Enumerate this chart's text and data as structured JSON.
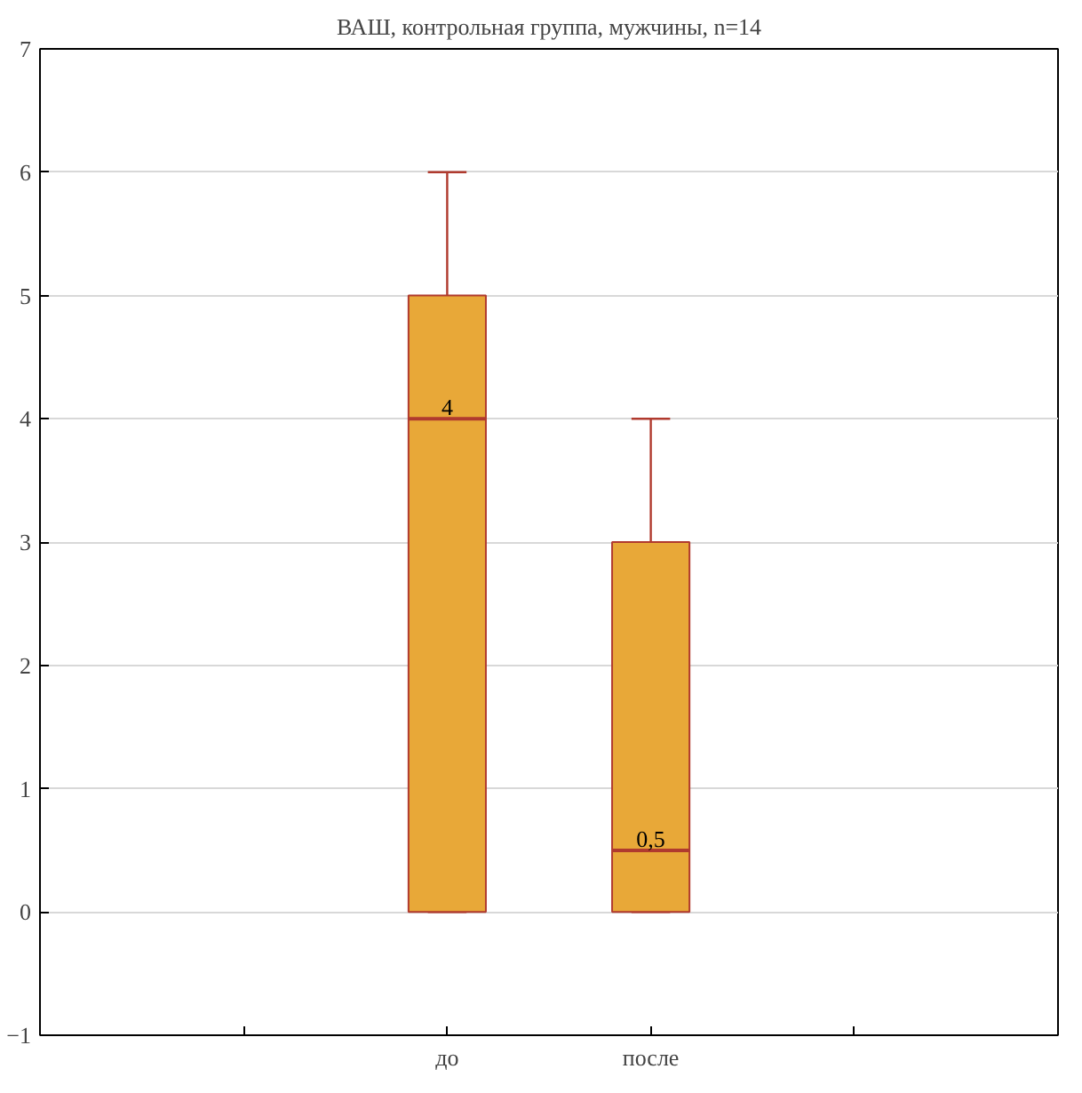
{
  "chart_data": {
    "type": "box",
    "title": "ВАШ, контрольная группа, мужчины, n=14",
    "categories": [
      "до",
      "после"
    ],
    "series": [
      {
        "color": "#e8a838",
        "boxes": [
          {
            "low": 0,
            "q1": 0,
            "median": 4,
            "q3": 5,
            "high": 6
          },
          {
            "low": 0,
            "q1": 0,
            "median": 0.5,
            "q3": 3,
            "high": 4
          }
        ]
      }
    ],
    "ylim": [
      -1,
      7
    ],
    "yticks": [
      -1,
      0,
      1,
      2,
      3,
      4,
      5,
      6,
      7
    ],
    "grid": "y",
    "annotations": [
      "4",
      "0,5"
    ]
  }
}
